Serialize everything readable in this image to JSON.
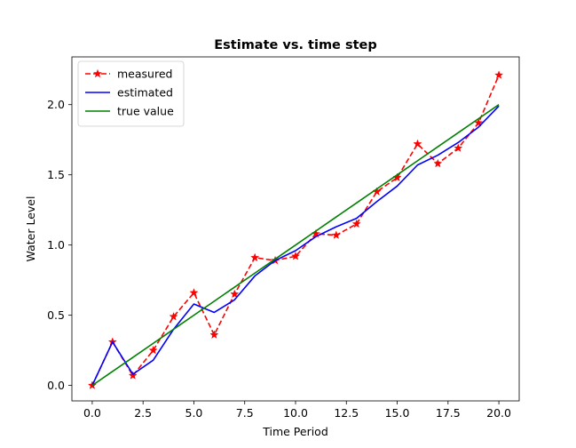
{
  "chart_data": {
    "type": "line",
    "title": "Estimate vs. time step",
    "xlabel": "Time Period",
    "ylabel": "Water Level",
    "xlim": [
      -1.0,
      21.0
    ],
    "ylim": [
      -0.11,
      2.34
    ],
    "xticks": [
      0.0,
      2.5,
      5.0,
      7.5,
      10.0,
      12.5,
      15.0,
      17.5,
      20.0
    ],
    "xtick_labels": [
      "0.0",
      "2.5",
      "5.0",
      "7.5",
      "10.0",
      "12.5",
      "15.0",
      "17.5",
      "20.0"
    ],
    "yticks": [
      0.0,
      0.5,
      1.0,
      1.5,
      2.0
    ],
    "ytick_labels": [
      "0.0",
      "0.5",
      "1.0",
      "1.5",
      "2.0"
    ],
    "grid": false,
    "legend_position": "top-left",
    "x": [
      0,
      1,
      2,
      3,
      4,
      5,
      6,
      7,
      8,
      9,
      10,
      11,
      12,
      13,
      14,
      15,
      16,
      17,
      18,
      19,
      20
    ],
    "series": [
      {
        "name": "measured",
        "color": "#ff0000",
        "style": "dashed",
        "marker": "star",
        "values": [
          0.0,
          0.31,
          0.07,
          0.25,
          0.49,
          0.66,
          0.36,
          0.65,
          0.91,
          0.89,
          0.92,
          1.08,
          1.07,
          1.15,
          1.38,
          1.48,
          1.72,
          1.58,
          1.69,
          1.87,
          2.21
        ]
      },
      {
        "name": "estimated",
        "color": "#0000ff",
        "style": "solid",
        "marker": "none",
        "values": [
          0.0,
          0.31,
          0.08,
          0.18,
          0.4,
          0.58,
          0.52,
          0.61,
          0.78,
          0.89,
          0.96,
          1.06,
          1.13,
          1.19,
          1.31,
          1.42,
          1.57,
          1.64,
          1.73,
          1.84,
          1.99
        ]
      },
      {
        "name": "true value",
        "color": "#008000",
        "style": "solid",
        "marker": "none",
        "values": [
          0.0,
          0.1,
          0.2,
          0.3,
          0.4,
          0.5,
          0.6,
          0.7,
          0.8,
          0.9,
          1.0,
          1.1,
          1.2,
          1.3,
          1.4,
          1.5,
          1.6,
          1.7,
          1.8,
          1.9,
          2.0
        ]
      }
    ]
  }
}
